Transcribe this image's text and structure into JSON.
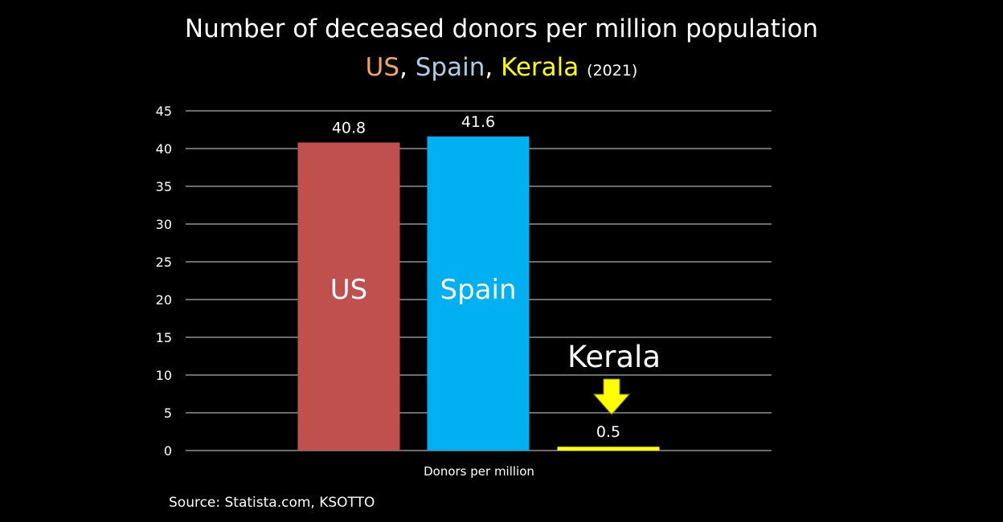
{
  "header": {
    "title": "Number of deceased donors per million population",
    "subtitle_parts": [
      {
        "text": "US",
        "color": "#f4a460"
      },
      {
        "text": ", ",
        "color": "#ffffff"
      },
      {
        "text": "Spain",
        "color": "#a9cde6"
      },
      {
        "text": ", ",
        "color": "#ffffff"
      },
      {
        "text": "Kerala",
        "color": "#ffff00"
      }
    ],
    "subtitle_year": "(2021)"
  },
  "chart_data": {
    "type": "bar",
    "categories": [
      "US",
      "Spain",
      "Kerala"
    ],
    "values": [
      40.8,
      41.6,
      0.5
    ],
    "value_labels": [
      "40.8",
      "41.6",
      "0.5"
    ],
    "bar_colors": [
      "#c0504d",
      "#00b0f0",
      "#ffff00"
    ],
    "inside_labels": [
      "US",
      "Spain"
    ],
    "annotation": {
      "text": "Kerala",
      "arrow_color": "#ffff00",
      "target": "Kerala"
    },
    "xlabel": "Donors per million",
    "ylabel": "",
    "ylim": [
      0,
      45
    ],
    "yticks": [
      0,
      5,
      10,
      15,
      20,
      25,
      30,
      35,
      40,
      45
    ],
    "grid": true,
    "legend": "none"
  },
  "footer": {
    "source": "Source: Statista.com, KSOTTO"
  }
}
